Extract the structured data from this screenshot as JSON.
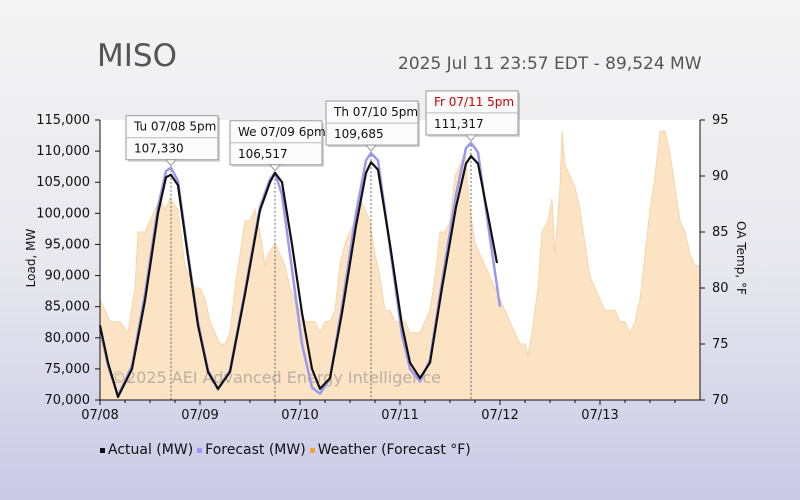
{
  "header": {
    "title": "MISO",
    "timestamp": "2025 Jul 11 23:57 EDT - 89,524 MW"
  },
  "watermark": "©2025 AEI Advanced Energy Intelligence",
  "legend": [
    {
      "label": "Actual (MW)",
      "color": "#111111"
    },
    {
      "label": "Forecast (MW)",
      "color": "#9999ee"
    },
    {
      "label": "Weather (Forecast °F)",
      "color": "#f2a33a"
    }
  ],
  "chart_data": {
    "type": "line",
    "xlabels": [
      "07/08",
      "07/09",
      "07/10",
      "07/11",
      "07/12",
      "07/13"
    ],
    "x_range_days": [
      0,
      6
    ],
    "ylabel_left": "Load, MW",
    "ylabel_right": "OA Temp, °F",
    "ylim_left": [
      70000,
      115000
    ],
    "yticks_left": [
      "115,000",
      "110,000",
      "105,000",
      "100,000",
      "95,000",
      "90,000",
      "85,000",
      "80,000",
      "75,000",
      "70,000"
    ],
    "ylim_right": [
      70,
      95
    ],
    "yticks_right": [
      "95",
      "90",
      "85",
      "80",
      "75",
      "70"
    ],
    "grid": false,
    "legend_position": "bottom",
    "peaks": [
      {
        "label": "Tu 07/08 5pm",
        "value": "107,330",
        "day": 0.71,
        "mw": 107330,
        "highlight": false
      },
      {
        "label": "We 07/09 6pm",
        "value": "106,517",
        "day": 1.75,
        "mw": 106517,
        "highlight": false
      },
      {
        "label": "Th 07/10 5pm",
        "value": "109,685",
        "day": 2.71,
        "mw": 109685,
        "highlight": false
      },
      {
        "label": "Fr 07/11 5pm",
        "value": "111,317",
        "day": 3.71,
        "mw": 111317,
        "highlight": true
      }
    ],
    "series": [
      {
        "name": "Actual (MW)",
        "color": "#111111",
        "points": [
          [
            0,
            82000
          ],
          [
            0.08,
            76000
          ],
          [
            0.18,
            70500
          ],
          [
            0.32,
            75000
          ],
          [
            0.45,
            86000
          ],
          [
            0.58,
            100000
          ],
          [
            0.66,
            105800
          ],
          [
            0.71,
            106200
          ],
          [
            0.78,
            104500
          ],
          [
            0.88,
            93000
          ],
          [
            0.98,
            82000
          ],
          [
            1.08,
            74500
          ],
          [
            1.18,
            71800
          ],
          [
            1.3,
            74500
          ],
          [
            1.45,
            87000
          ],
          [
            1.6,
            100500
          ],
          [
            1.7,
            105000
          ],
          [
            1.75,
            106500
          ],
          [
            1.82,
            105000
          ],
          [
            1.92,
            95000
          ],
          [
            2.02,
            84000
          ],
          [
            2.12,
            75000
          ],
          [
            2.2,
            71800
          ],
          [
            2.3,
            73500
          ],
          [
            2.42,
            84000
          ],
          [
            2.56,
            98000
          ],
          [
            2.66,
            106500
          ],
          [
            2.71,
            108200
          ],
          [
            2.78,
            107000
          ],
          [
            2.9,
            95000
          ],
          [
            3.02,
            82000
          ],
          [
            3.1,
            76000
          ],
          [
            3.2,
            73500
          ],
          [
            3.3,
            76000
          ],
          [
            3.42,
            88000
          ],
          [
            3.56,
            101000
          ],
          [
            3.66,
            108000
          ],
          [
            3.71,
            109200
          ],
          [
            3.78,
            108000
          ],
          [
            3.9,
            98000
          ],
          [
            3.97,
            92000
          ]
        ]
      },
      {
        "name": "Forecast (MW)",
        "color": "#9999ee",
        "points": [
          [
            0,
            81500
          ],
          [
            0.08,
            75500
          ],
          [
            0.18,
            70700
          ],
          [
            0.32,
            75500
          ],
          [
            0.45,
            87000
          ],
          [
            0.58,
            101000
          ],
          [
            0.66,
            106800
          ],
          [
            0.71,
            107330
          ],
          [
            0.78,
            105200
          ],
          [
            0.88,
            93500
          ],
          [
            0.98,
            82500
          ],
          [
            1.08,
            74800
          ],
          [
            1.18,
            71700
          ],
          [
            1.3,
            74800
          ],
          [
            1.45,
            87500
          ],
          [
            1.6,
            101000
          ],
          [
            1.7,
            105500
          ],
          [
            1.75,
            106517
          ],
          [
            1.82,
            103000
          ],
          [
            1.92,
            91000
          ],
          [
            2.02,
            79000
          ],
          [
            2.12,
            72000
          ],
          [
            2.2,
            71000
          ],
          [
            2.3,
            73500
          ],
          [
            2.42,
            85000
          ],
          [
            2.56,
            100000
          ],
          [
            2.66,
            108500
          ],
          [
            2.71,
            109685
          ],
          [
            2.78,
            108500
          ],
          [
            2.9,
            94500
          ],
          [
            3.02,
            80500
          ],
          [
            3.1,
            75000
          ],
          [
            3.2,
            73000
          ],
          [
            3.3,
            76500
          ],
          [
            3.42,
            89000
          ],
          [
            3.56,
            103000
          ],
          [
            3.66,
            110500
          ],
          [
            3.71,
            111317
          ],
          [
            3.78,
            109800
          ],
          [
            3.9,
            96000
          ],
          [
            4.0,
            85000
          ]
        ]
      },
      {
        "name": "Weather (Forecast °F)",
        "color": "#f2a33a",
        "points": [
          [
            0,
            79
          ],
          [
            0.05,
            78
          ],
          [
            0.1,
            77
          ],
          [
            0.2,
            77
          ],
          [
            0.28,
            76
          ],
          [
            0.35,
            80
          ],
          [
            0.38,
            85
          ],
          [
            0.45,
            85
          ],
          [
            0.5,
            86
          ],
          [
            0.55,
            87
          ],
          [
            0.6,
            88
          ],
          [
            0.65,
            87
          ],
          [
            0.7,
            88
          ],
          [
            0.78,
            87
          ],
          [
            0.85,
            82
          ],
          [
            0.9,
            81
          ],
          [
            0.95,
            80
          ],
          [
            1.0,
            80
          ],
          [
            1.05,
            79
          ],
          [
            1.1,
            77
          ],
          [
            1.15,
            76
          ],
          [
            1.2,
            75
          ],
          [
            1.25,
            75
          ],
          [
            1.3,
            76
          ],
          [
            1.35,
            80
          ],
          [
            1.4,
            83
          ],
          [
            1.45,
            86
          ],
          [
            1.5,
            86
          ],
          [
            1.55,
            87
          ],
          [
            1.6,
            85
          ],
          [
            1.65,
            82
          ],
          [
            1.68,
            83
          ],
          [
            1.75,
            84
          ],
          [
            1.8,
            83
          ],
          [
            1.85,
            82
          ],
          [
            1.9,
            80
          ],
          [
            1.95,
            79
          ],
          [
            2.0,
            78
          ],
          [
            2.05,
            77
          ],
          [
            2.1,
            77
          ],
          [
            2.15,
            77
          ],
          [
            2.2,
            76
          ],
          [
            2.25,
            77
          ],
          [
            2.3,
            77
          ],
          [
            2.35,
            78
          ],
          [
            2.4,
            82
          ],
          [
            2.45,
            84
          ],
          [
            2.5,
            85
          ],
          [
            2.55,
            86
          ],
          [
            2.6,
            88
          ],
          [
            2.65,
            87
          ],
          [
            2.7,
            86
          ],
          [
            2.75,
            83
          ],
          [
            2.8,
            81
          ],
          [
            2.85,
            78
          ],
          [
            2.9,
            78
          ],
          [
            2.95,
            77
          ],
          [
            3.0,
            77
          ],
          [
            3.05,
            77
          ],
          [
            3.1,
            76
          ],
          [
            3.15,
            76
          ],
          [
            3.2,
            76
          ],
          [
            3.25,
            77
          ],
          [
            3.3,
            78
          ],
          [
            3.35,
            81
          ],
          [
            3.4,
            85
          ],
          [
            3.45,
            85
          ],
          [
            3.5,
            86
          ],
          [
            3.55,
            90
          ],
          [
            3.6,
            91
          ],
          [
            3.65,
            92
          ],
          [
            3.7,
            87
          ],
          [
            3.75,
            84
          ],
          [
            3.8,
            83
          ],
          [
            3.85,
            82
          ],
          [
            3.9,
            81
          ],
          [
            3.95,
            80
          ],
          [
            4.0,
            79
          ],
          [
            4.05,
            78
          ],
          [
            4.1,
            77
          ],
          [
            4.15,
            76
          ],
          [
            4.2,
            75
          ],
          [
            4.25,
            75
          ],
          [
            4.28,
            74
          ],
          [
            4.32,
            76
          ],
          [
            4.38,
            80
          ],
          [
            4.42,
            85
          ],
          [
            4.48,
            86
          ],
          [
            4.52,
            88
          ],
          [
            4.55,
            83
          ],
          [
            4.6,
            89
          ],
          [
            4.62,
            94
          ],
          [
            4.65,
            91
          ],
          [
            4.7,
            90
          ],
          [
            4.75,
            89
          ],
          [
            4.8,
            87
          ],
          [
            4.85,
            84
          ],
          [
            4.9,
            81
          ],
          [
            4.95,
            80
          ],
          [
            5.0,
            79
          ],
          [
            5.05,
            78
          ],
          [
            5.1,
            78
          ],
          [
            5.15,
            78
          ],
          [
            5.2,
            77
          ],
          [
            5.25,
            77
          ],
          [
            5.3,
            76
          ],
          [
            5.35,
            77
          ],
          [
            5.4,
            79
          ],
          [
            5.45,
            83
          ],
          [
            5.5,
            87
          ],
          [
            5.55,
            90
          ],
          [
            5.6,
            94
          ],
          [
            5.65,
            94
          ],
          [
            5.7,
            92
          ],
          [
            5.75,
            89
          ],
          [
            5.8,
            86
          ],
          [
            5.85,
            85
          ],
          [
            5.9,
            83
          ],
          [
            5.95,
            82
          ],
          [
            6.0,
            82
          ]
        ]
      }
    ]
  }
}
